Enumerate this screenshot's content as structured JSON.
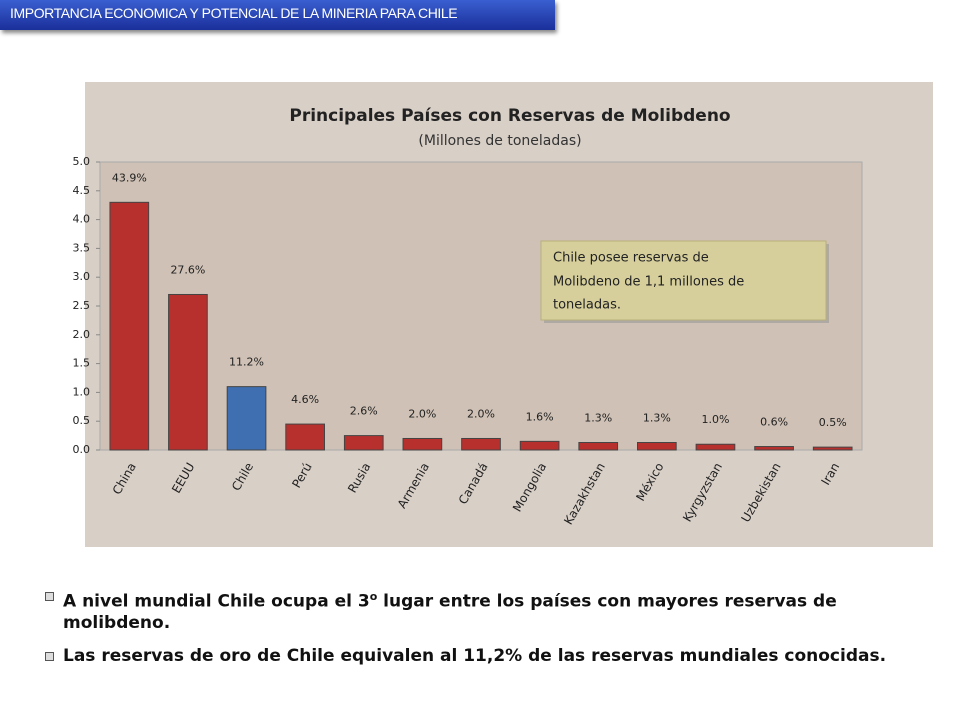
{
  "header": {
    "title": "IMPORTANCIA  ECONOMICA Y POTENCIAL DE LA MINERIA PARA CHILE"
  },
  "chart_data": {
    "type": "bar",
    "title": "Principales Países con Reservas de Molibdeno",
    "subtitle": "(Millones de toneladas)",
    "categories": [
      "China",
      "EEUU",
      "Chile",
      "Perú",
      "Rusia",
      "Armenia",
      "Canadá",
      "Mongolia",
      "Kazakhstan",
      "México",
      "Kyrgyzstan",
      "Uzbekistan",
      "Iran"
    ],
    "values": [
      4.3,
      2.7,
      1.1,
      0.45,
      0.25,
      0.2,
      0.2,
      0.15,
      0.13,
      0.13,
      0.1,
      0.06,
      0.05
    ],
    "share_labels": [
      "43.9%",
      "27.6%",
      "11.2%",
      "4.6%",
      "2.6%",
      "2.0%",
      "2.0%",
      "1.6%",
      "1.3%",
      "1.3%",
      "1.0%",
      "0.6%",
      "0.5%"
    ],
    "colors": [
      "#b8302e",
      "#b8302e",
      "#3f6fb0",
      "#b8302e",
      "#b8302e",
      "#b8302e",
      "#b8302e",
      "#b8302e",
      "#b8302e",
      "#b8302e",
      "#b8302e",
      "#b8302e",
      "#b8302e"
    ],
    "ylim": [
      0,
      5
    ],
    "yticks": [
      {
        "value": 0,
        "label": "0.0"
      },
      0.5,
      {
        "value": 1,
        "label": "1.0"
      },
      1.5,
      {
        "value": 2,
        "label": "2.0"
      },
      2.5,
      {
        "value": 3,
        "label": "3.0"
      },
      3.5,
      {
        "value": 4,
        "label": "4.0"
      },
      4.5,
      {
        "value": 5,
        "label": "5.0"
      }
    ],
    "grid": false,
    "annotation": [
      "Chile  posee reservas de",
      "Molibdeno de 1,1 millones de",
      "toneladas."
    ]
  },
  "bullets": [
    {
      "text": "A nivel  mundial Chile ocupa el 3",
      "sup": "o",
      "rest": " lugar entre los países con mayores reservas de molibdeno."
    },
    {
      "text": "Las reservas de oro de Chile equivalen al 11,2% de las reservas mundiales conocidas."
    }
  ]
}
